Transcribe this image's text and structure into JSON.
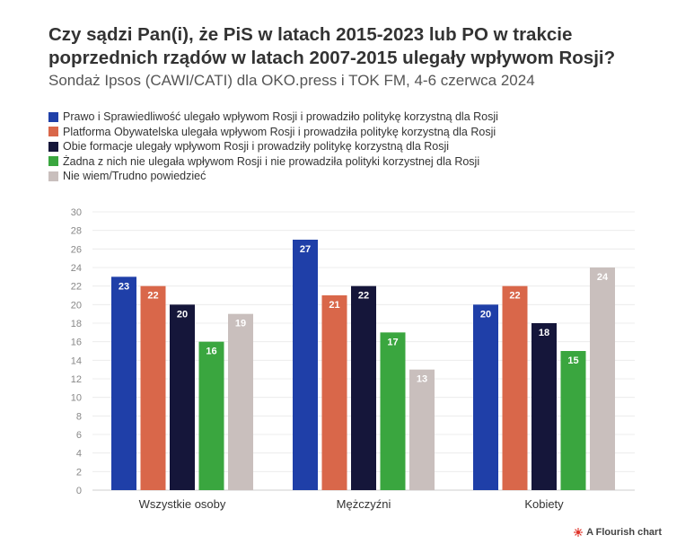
{
  "header": {
    "title": "Czy sądzi Pan(i), że PiS w latach 2015-2023 lub PO w trakcie poprzednich rządów w latach 2007-2015 ulegały wpływom Rosji?",
    "subtitle": "Sondaż Ipsos (CAWI/CATI) dla OKO.press i TOK FM, 4-6 czerwca 2024"
  },
  "chart_data": {
    "type": "bar",
    "categories": [
      "Wszystkie osoby",
      "Mężczyźni",
      "Kobiety"
    ],
    "series": [
      {
        "name": "Prawo i Sprawiedliwość ulegało wpływom Rosji i prowadziło politykę korzystną dla Rosji",
        "color": "#1f3fa8",
        "label_color": "#ffffff",
        "values": [
          23,
          27,
          20
        ]
      },
      {
        "name": "Platforma Obywatelska ulegała wpływom Rosji i prowadziła politykę korzystną dla Rosji",
        "color": "#d9674a",
        "label_color": "#ffffff",
        "values": [
          22,
          21,
          22
        ]
      },
      {
        "name": "Obie formacje ulegały wpływom Rosji i prowadziły politykę korzystną dla Rosji",
        "color": "#15163a",
        "label_color": "#ffffff",
        "values": [
          20,
          22,
          18
        ]
      },
      {
        "name": "Żadna z nich nie ulegała wpływom Rosji i nie prowadziła polityki korzystnej dla Rosji",
        "color": "#3aa63f",
        "label_color": "#ffffff",
        "values": [
          16,
          17,
          15
        ]
      },
      {
        "name": "Nie wiem/Trudno powiedzieć",
        "color": "#c9bfbd",
        "label_color": "#ffffff",
        "values": [
          19,
          13,
          24
        ]
      }
    ],
    "ylim": [
      0,
      30
    ],
    "yticks": [
      0,
      2,
      4,
      6,
      8,
      10,
      12,
      14,
      16,
      18,
      20,
      22,
      24,
      26,
      28,
      30
    ],
    "grid": true,
    "legend_position": "top-left"
  },
  "footer": {
    "credit": "A Flourish chart"
  }
}
